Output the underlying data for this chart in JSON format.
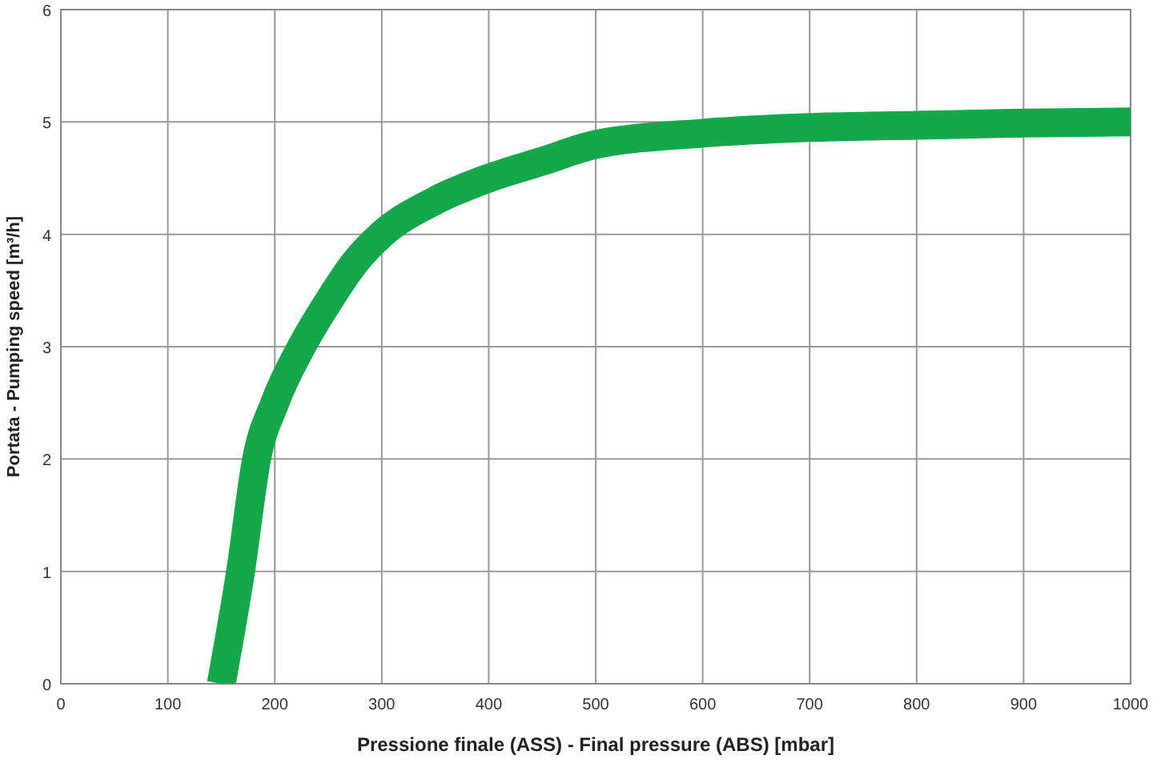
{
  "chart_data": {
    "type": "line",
    "xlabel": "Pressione finale (ASS) - Final pressure (ABS) [mbar]",
    "ylabel": "Portata - Pumping speed [m³/h]",
    "x": [
      150,
      168,
      183,
      200,
      225,
      250,
      275,
      300,
      350,
      400,
      450,
      500,
      600,
      700,
      800,
      900,
      1000
    ],
    "series": [
      {
        "color": "#14a84a",
        "values": [
          0,
          1,
          2,
          2.5,
          3.0,
          3.4,
          3.75,
          4.0,
          4.3,
          4.5,
          4.65,
          4.8,
          4.9,
          4.95,
          4.97,
          4.99,
          5.0
        ]
      }
    ],
    "xlim": [
      0,
      1000
    ],
    "xticks": [
      0,
      100,
      200,
      300,
      400,
      500,
      600,
      700,
      800,
      900,
      1000
    ],
    "ylim": [
      0,
      6
    ],
    "yticks": [
      0,
      1,
      2,
      3,
      4,
      5,
      6
    ],
    "grid": true,
    "marker": "none",
    "line_style": "solid"
  }
}
